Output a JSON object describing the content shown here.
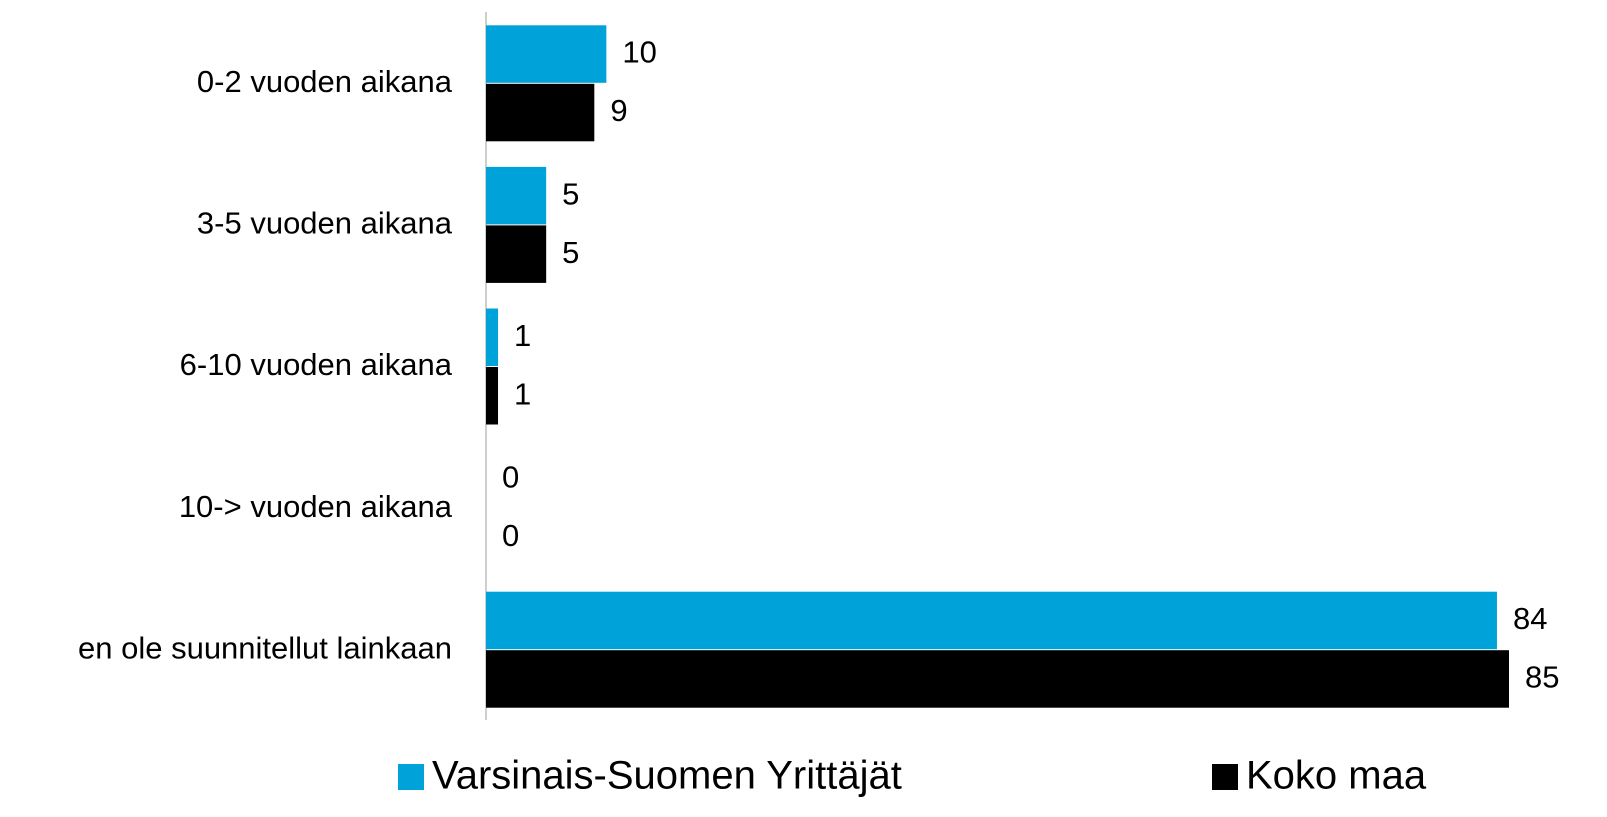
{
  "chart_data": {
    "type": "hbar",
    "categories": [
      "0-2 vuoden aikana",
      "3-5 vuoden aikana",
      "6-10 vuoden aikana",
      "10-> vuoden aikana",
      "en ole suunnitellut lainkaan"
    ],
    "series": [
      {
        "name": "Varsinais-Suomen Yrittäjät",
        "color": "#00a2da",
        "values": [
          10,
          5,
          1,
          0,
          84
        ]
      },
      {
        "name": "Koko maa",
        "color": "#000000",
        "values": [
          9,
          5,
          1,
          0,
          85
        ]
      }
    ],
    "xlim": [
      0,
      85
    ]
  }
}
